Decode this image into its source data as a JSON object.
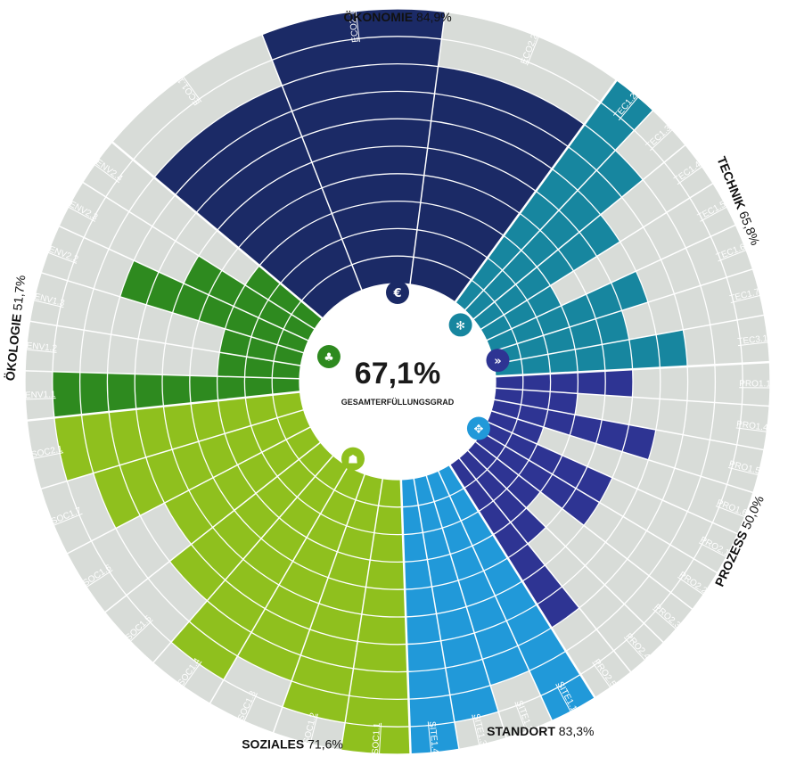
{
  "chart_data": {
    "type": "radial_bar",
    "center": {
      "value": "67,1%",
      "label": "GESAMTERFÜLLUNGSGRAD"
    },
    "rings": 10,
    "background_color": "#d8dcd8",
    "categories": [
      {
        "id": "eco",
        "name": "ÖKONOMIE",
        "percent": "84,9%",
        "color": "#1b2a66",
        "icon": "euro-icon",
        "criteria": [
          {
            "label": "ECO1.1",
            "value": 8
          },
          {
            "label": "ECO2.1",
            "value": 10
          },
          {
            "label": "ECO2.2",
            "value": 8
          }
        ]
      },
      {
        "id": "tec",
        "name": "TECHNIK",
        "percent": "65,8%",
        "color": "#17869f",
        "icon": "gears-icon",
        "criteria": [
          {
            "label": "TEC1.2",
            "value": 10
          },
          {
            "label": "TEC1.3",
            "value": 8
          },
          {
            "label": "TEC1.4",
            "value": 6
          },
          {
            "label": "TEC1.5",
            "value": 3
          },
          {
            "label": "TEC1.6",
            "value": 6
          },
          {
            "label": "TEC1.7",
            "value": 5
          },
          {
            "label": "TEC3.1",
            "value": 7
          }
        ]
      },
      {
        "id": "pro",
        "name": "PROZESS",
        "percent": "50,0%",
        "color": "#2e3493",
        "icon": "process-icon",
        "criteria": [
          {
            "label": "PRO1.1",
            "value": 5
          },
          {
            "label": "PRO1.4",
            "value": 3
          },
          {
            "label": "PRO1.5",
            "value": 6
          },
          {
            "label": "PRO1.6",
            "value": 2
          },
          {
            "label": "PRO2.1",
            "value": 5
          },
          {
            "label": "PRO2.2",
            "value": 5
          },
          {
            "label": "PRO2.3",
            "value": 3
          },
          {
            "label": "PRO2.4",
            "value": 4
          },
          {
            "label": "PRO2.5",
            "value": 7
          }
        ]
      },
      {
        "id": "site",
        "name": "STANDORT",
        "percent": "83,3%",
        "color": "#2199d9",
        "icon": "location-icon",
        "criteria": [
          {
            "label": "SITE1.1",
            "value": 10
          },
          {
            "label": "SITE1.2",
            "value": 8
          },
          {
            "label": "SITE1.3",
            "value": 9
          },
          {
            "label": "SITE1.4",
            "value": 10
          }
        ]
      },
      {
        "id": "soc",
        "name": "SOZIALES",
        "percent": "71,6%",
        "color": "#8fc01e",
        "icon": "people-icon",
        "criteria": [
          {
            "label": "SOC1.1",
            "value": 10
          },
          {
            "label": "SOC1.2",
            "value": 9
          },
          {
            "label": "SOC1.3",
            "value": 8
          },
          {
            "label": "SOC1.4",
            "value": 9
          },
          {
            "label": "SOC1.5",
            "value": 7
          },
          {
            "label": "SOC1.6",
            "value": 6
          },
          {
            "label": "SOC1.7",
            "value": 8
          },
          {
            "label": "SOC2.1",
            "value": 9
          }
        ]
      },
      {
        "id": "env",
        "name": "ÖKOLOGIE",
        "percent": "51,7%",
        "color": "#2e8a1f",
        "icon": "tree-icon",
        "criteria": [
          {
            "label": "ENV1.1",
            "value": 9
          },
          {
            "label": "ENV1.2",
            "value": 3
          },
          {
            "label": "ENV1.3",
            "value": 3
          },
          {
            "label": "ENV2.2",
            "value": 7
          },
          {
            "label": "ENV2.3",
            "value": 5
          },
          {
            "label": "ENV2.4",
            "value": 3
          }
        ]
      }
    ]
  }
}
